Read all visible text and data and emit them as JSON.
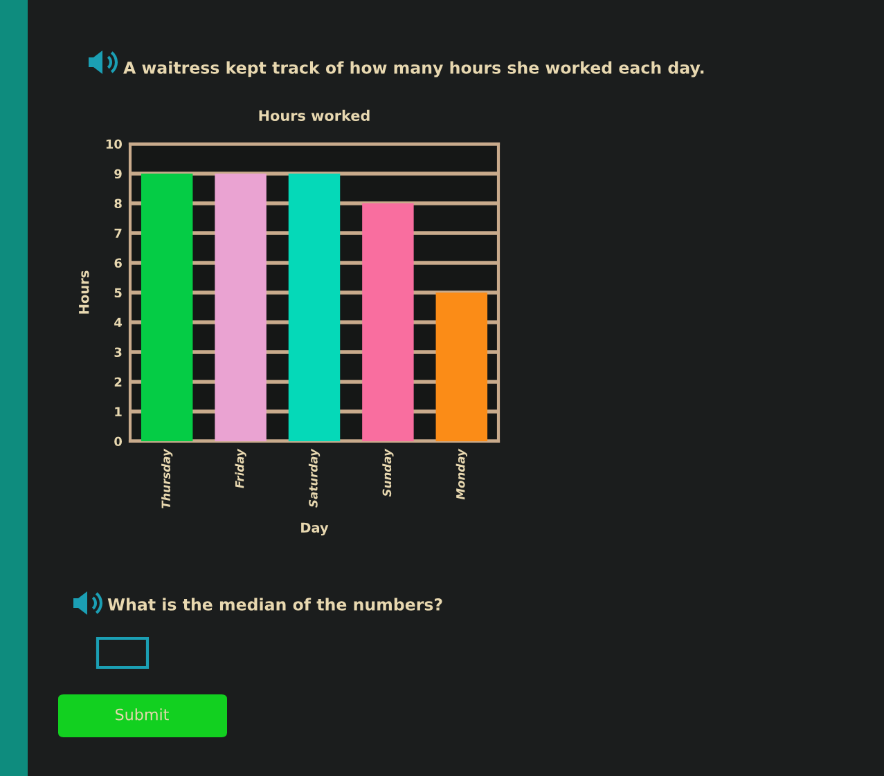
{
  "chart_data": {
    "type": "bar",
    "subtitle": "A waitress kept track of how many hours she worked each day.",
    "title": "Hours worked",
    "xlabel": "Day",
    "ylabel": "Hours",
    "categories": [
      "Thursday",
      "Friday",
      "Saturday",
      "Sunday",
      "Monday"
    ],
    "values": [
      9,
      9,
      9,
      8,
      5
    ],
    "colors": [
      "#05cc45",
      "#eaa3d2",
      "#05d9b8",
      "#f96e9f",
      "#fb8c17"
    ],
    "ylim": [
      0,
      10
    ],
    "yticks": [
      0,
      1,
      2,
      3,
      4,
      5,
      6,
      7,
      8,
      9,
      10
    ],
    "grid": "y",
    "annotations": [
      "What is the median of the numbers?",
      "Submit"
    ]
  }
}
